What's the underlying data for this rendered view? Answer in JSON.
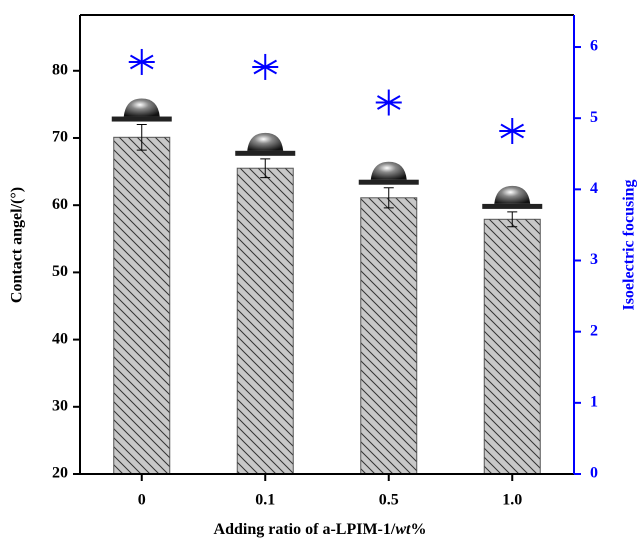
{
  "chart_data": {
    "type": "bar",
    "x_label": [
      "Adding ratio of a-LPIM-1/",
      "wt",
      "%"
    ],
    "y_label": "Contact angel/(°)",
    "y2_label": "Isoelectric focusing",
    "categories": [
      "0",
      "0.1",
      "0.5",
      "1.0"
    ],
    "series": [
      {
        "values": [
          70.1,
          65.5,
          61.1,
          57.9
        ],
        "errors": [
          1.9,
          1.4,
          1.5,
          1.1
        ],
        "color": "#c8c8c8"
      },
      {
        "axis": "y2",
        "marker": "asterisk",
        "values": [
          5.79,
          5.72,
          5.22,
          4.82
        ],
        "color": "#0000ff"
      }
    ],
    "ylim": [
      20,
      88.3
    ],
    "yticks": [
      20,
      30,
      40,
      50,
      60,
      70,
      80
    ],
    "y2lim": [
      0,
      6.45
    ],
    "y2ticks": [
      0,
      1,
      2,
      3,
      4,
      5,
      6
    ],
    "y2_color": "#0000ff"
  }
}
